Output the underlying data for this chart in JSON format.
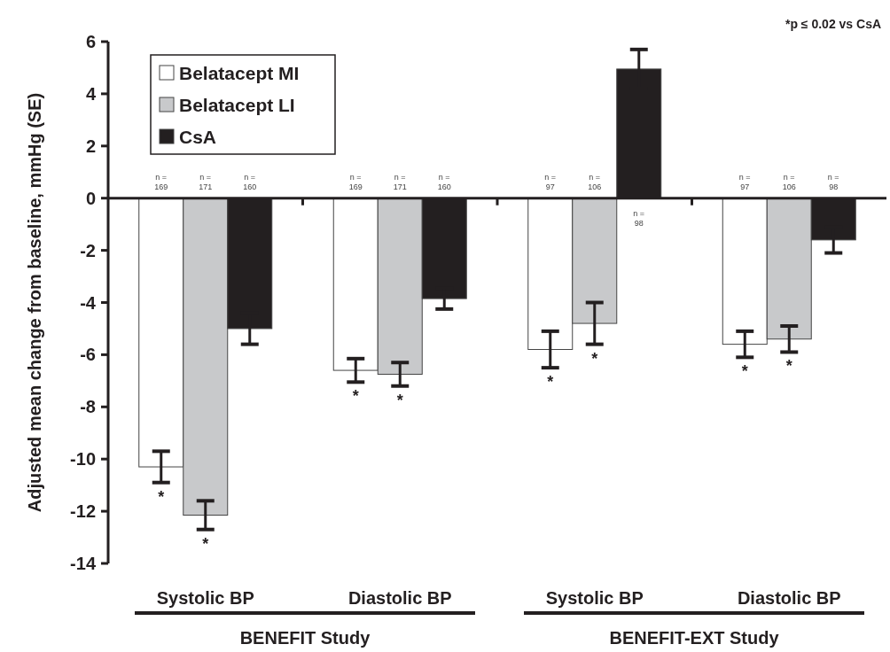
{
  "chart_data": {
    "type": "bar",
    "ylabel": "Adjusted mean change from baseline, mmHg (SE)",
    "categories": [
      "Systolic BP",
      "Diastolic BP",
      "Systolic BP",
      "Diastolic BP"
    ],
    "series": [
      {
        "name": "Belatacept MI",
        "color": "#ffffff",
        "values": [
          -10.3,
          -6.6,
          -5.8,
          -5.6
        ],
        "errors": [
          0.6,
          0.45,
          0.7,
          0.5
        ]
      },
      {
        "name": "Belatacept LI",
        "color": "#c8c9cb",
        "values": [
          -12.15,
          -6.75,
          -4.8,
          -5.4
        ],
        "errors": [
          0.55,
          0.45,
          0.8,
          0.5
        ]
      },
      {
        "name": "CsA",
        "color": "#231f20",
        "values": [
          -5.0,
          -3.85,
          4.95,
          -1.6
        ],
        "errors": [
          0.6,
          0.4,
          0.75,
          0.5
        ]
      }
    ],
    "ylim": [
      -14,
      6
    ],
    "yticks": [
      -14,
      -12,
      -10,
      -8,
      -6,
      -4,
      -2,
      0,
      2,
      4,
      6
    ],
    "legend": "top left",
    "annotations": [
      "*p ≤ 0.02 vs CsA",
      "BENEFIT Study",
      "BENEFIT-EXT Study",
      "n = 169",
      "n = 171",
      "n = 160",
      "n = 169",
      "n = 171",
      "n = 160",
      "n = 97",
      "n = 106",
      "n = 98",
      "n = 97",
      "n = 106",
      "n = 98",
      "*",
      "*",
      "*",
      "*",
      "*",
      "*",
      "*",
      "*"
    ]
  }
}
